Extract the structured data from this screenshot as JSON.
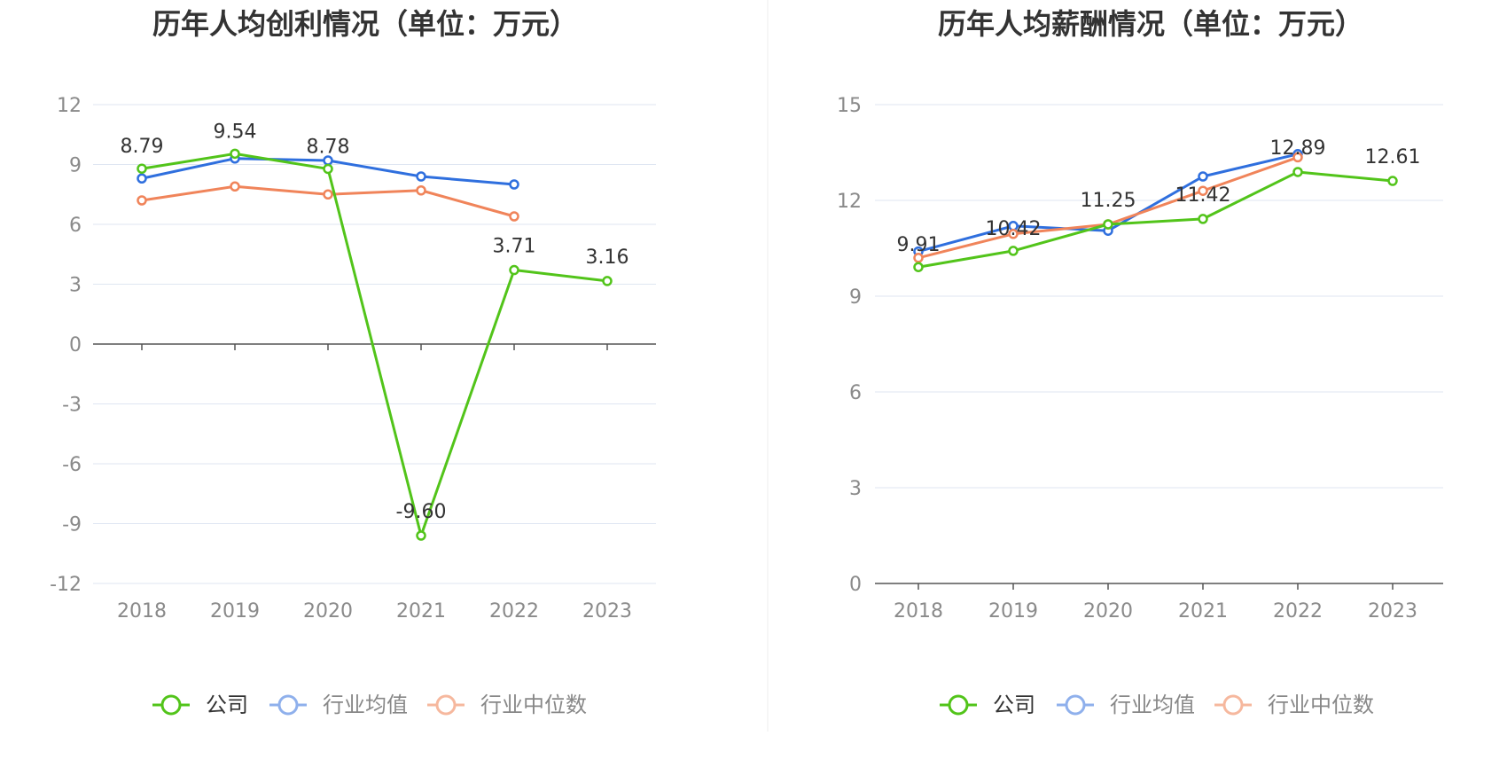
{
  "colors": {
    "company": "#52c41a",
    "industry_avg": "#2f6fde",
    "industry_median": "#f0845a",
    "grid": "#dfe6f2",
    "axis": "#555555",
    "legend_avg_faded": "#8fb0ec",
    "legend_median_faded": "#f6b89e",
    "divider": "#eeeeee"
  },
  "legend": {
    "company": "公司",
    "industry_avg": "行业均值",
    "industry_median": "行业中位数"
  },
  "chart_data": [
    {
      "type": "line",
      "title": "历年人均创利情况（单位：万元）",
      "categories": [
        "2018",
        "2019",
        "2020",
        "2021",
        "2022",
        "2023"
      ],
      "ylim": [
        -12,
        12
      ],
      "yticks": [
        12,
        9,
        6,
        3,
        0,
        -3,
        -6,
        -9,
        -12
      ],
      "grid": true,
      "legend_position": "bottom",
      "series": [
        {
          "name": "公司",
          "key": "company",
          "values": [
            8.79,
            9.54,
            8.78,
            -9.6,
            3.71,
            3.16
          ],
          "labels": [
            "8.79",
            "9.54",
            "8.78",
            "-9.60",
            "3.71",
            "3.16"
          ]
        },
        {
          "name": "行业均值",
          "key": "industry_avg",
          "values": [
            8.3,
            9.3,
            9.2,
            8.4,
            8.0,
            null
          ]
        },
        {
          "name": "行业中位数",
          "key": "industry_median",
          "values": [
            7.2,
            7.9,
            7.5,
            7.7,
            6.4,
            null
          ]
        }
      ]
    },
    {
      "type": "line",
      "title": "历年人均薪酬情况（单位：万元）",
      "categories": [
        "2018",
        "2019",
        "2020",
        "2021",
        "2022",
        "2023"
      ],
      "ylim": [
        0,
        15
      ],
      "yticks": [
        15,
        12,
        9,
        6,
        3,
        0
      ],
      "grid": true,
      "legend_position": "bottom",
      "series": [
        {
          "name": "公司",
          "key": "company",
          "values": [
            9.91,
            10.42,
            11.25,
            11.42,
            12.89,
            12.61
          ],
          "labels": [
            "9.91",
            "10.42",
            "11.25",
            "11.42",
            "12.89",
            "12.61"
          ]
        },
        {
          "name": "行业均值",
          "key": "industry_avg",
          "values": [
            10.4,
            11.2,
            11.05,
            12.75,
            13.45,
            null
          ]
        },
        {
          "name": "行业中位数",
          "key": "industry_median",
          "values": [
            10.2,
            10.95,
            11.25,
            12.3,
            13.35,
            null
          ]
        }
      ]
    }
  ]
}
